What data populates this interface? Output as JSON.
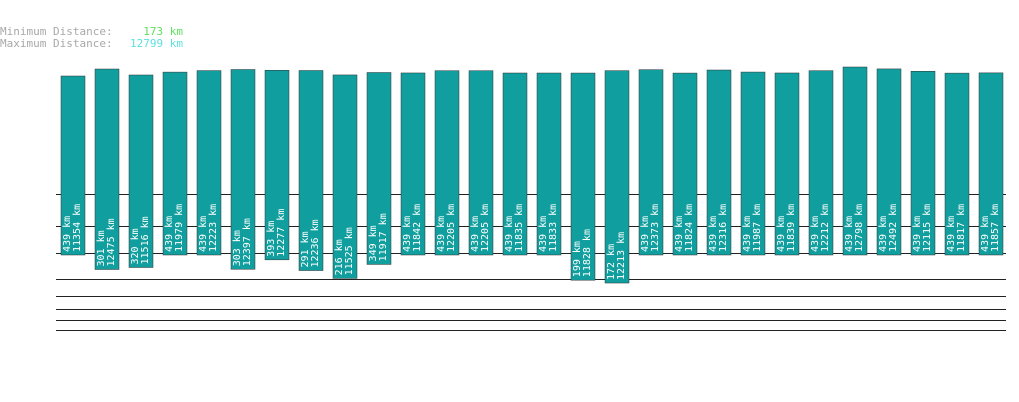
{
  "header": {
    "min_label": "Minimum Distance:",
    "min_value": "173 km",
    "max_label": "Maximum Distance:",
    "max_value": "12799 km"
  },
  "chart_data": {
    "type": "range-bar",
    "color": "#119e9e",
    "series": [
      {
        "name": "min",
        "values": [
          439,
          301,
          320,
          439,
          439,
          303,
          393,
          291,
          216,
          349,
          439,
          439,
          439,
          439,
          439,
          199,
          172,
          439,
          439,
          439,
          439,
          439,
          439,
          439,
          439,
          439,
          439,
          439
        ],
        "value_labels": [
          "439 km",
          "301 km",
          "320 km",
          "439 km",
          "439 km",
          "303 km",
          "393 km",
          "291 km",
          "216 km",
          "349 km",
          "439 km",
          "439 km",
          "439 km",
          "439 km",
          "439 km",
          "199 km",
          "172 km",
          "439 km",
          "439 km",
          "439 km",
          "439 km",
          "439 km",
          "439 km",
          "439 km",
          "439 km",
          "439 km",
          "439 km",
          "439 km"
        ]
      },
      {
        "name": "max",
        "values": [
          11354,
          12475,
          11516,
          11979,
          12223,
          12397,
          12277,
          12236,
          11525,
          11917,
          11842,
          12205,
          12205,
          11835,
          11833,
          11828,
          12213,
          12373,
          11824,
          12316,
          11987,
          11839,
          12212,
          12798,
          12492,
          12115,
          11817,
          11857
        ],
        "value_labels": [
          "11354 km",
          "12475 km",
          "11516 km",
          "11979 km",
          "12223 km",
          "12397 km",
          "12277 km",
          "12236 km",
          "11525 km",
          "11917 km",
          "11842 km",
          "12205 km",
          "12205 km",
          "11835 km",
          "11833 km",
          "11828 km",
          "12213 km",
          "12373 km",
          "11824 km",
          "12316 km",
          "11987 km",
          "11839 km",
          "12212 km",
          "12798 km",
          "12492 km",
          "12115 km",
          "11817 km",
          "11857 km"
        ]
      }
    ]
  }
}
